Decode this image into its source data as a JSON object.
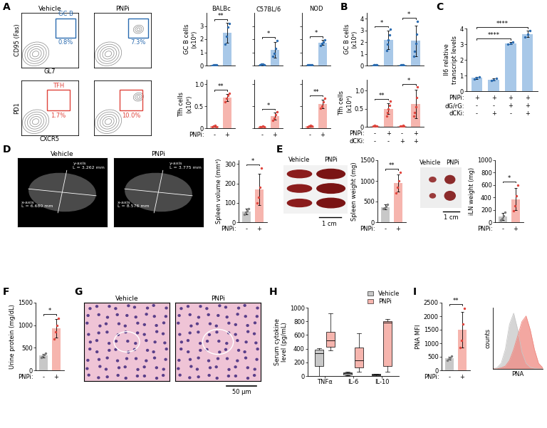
{
  "panel_labels": [
    "A",
    "B",
    "C",
    "D",
    "E",
    "F",
    "G",
    "H",
    "I"
  ],
  "flow_plots": [
    {
      "title": "Vehicle",
      "xlabel": "GL7",
      "ylabel": "CD95 (Fas)",
      "gate": "GC B",
      "percent": "0.8%",
      "color": "#2a6bb0"
    },
    {
      "title": "PNPi",
      "percent": "7.3%",
      "color": "#2a6bb0"
    },
    {
      "xlabel": "CXCR5",
      "ylabel": "PD1",
      "gate": "TFH",
      "percent": "1.7%",
      "color": "#e0453d"
    },
    {
      "percent": "10.0%",
      "color": "#e0453d"
    }
  ],
  "ultrasound": [
    {
      "title": "Vehicle",
      "x_text": "x-axis\nL = 6.680 mm",
      "y_text": "y-axis\nL = 3.262 mm"
    },
    {
      "title": "PNPi",
      "x_text": "x-axis\nL = 8.576 mm",
      "y_text": "y-axis\nL = 3.775 mm"
    }
  ],
  "spleen_photo": {
    "labels": [
      "Vehicle",
      "PNPi"
    ],
    "scale": "1 cm"
  },
  "ln_photo": {
    "labels": [
      "Vehicle",
      "PNPi"
    ],
    "scale": "1 cm"
  },
  "histology": {
    "labels": [
      "Vehicle",
      "PNPi"
    ],
    "scale": "50 μm"
  },
  "chart_data": [
    {
      "type": "bar",
      "title": "BALBc",
      "ylabel": "GC B cells\n(x10⁶)",
      "values": [
        0.05,
        2.5
      ],
      "errors": [
        0.03,
        0.75
      ],
      "points": [
        [
          0.02,
          0.05,
          0.07,
          0.06
        ],
        [
          1.6,
          2.2,
          2.9,
          3.2
        ]
      ],
      "colors": [
        "#a8c8e8",
        "#a8c8e8"
      ],
      "point_colors": [
        "#2a6bb0",
        "#2a6bb0"
      ],
      "ylim": [
        0,
        4
      ],
      "yticks": [
        0,
        1,
        2,
        3
      ],
      "significance": [
        {
          "from": 0,
          "to": 1,
          "label": "**"
        }
      ]
    },
    {
      "type": "bar",
      "title": "C57BL/6",
      "values": [
        0.08,
        1.2
      ],
      "errors": [
        0.05,
        0.6
      ],
      "points": [
        [
          0.05,
          0.1,
          0.12,
          0.05
        ],
        [
          0.7,
          0.9,
          1.3,
          1.9
        ]
      ],
      "colors": [
        "#a8c8e8",
        "#a8c8e8"
      ],
      "point_colors": [
        "#2a6bb0",
        "#2a6bb0"
      ],
      "ylim": [
        0,
        4
      ],
      "yticks": [
        0,
        1,
        2,
        3
      ],
      "tick_labels": false,
      "significance": [
        {
          "from": 0,
          "to": 1,
          "label": "*"
        }
      ]
    },
    {
      "type": "bar",
      "title": "NOD",
      "values": [
        0.05,
        1.75
      ],
      "errors": [
        0.03,
        0.2
      ],
      "points": [
        [
          0.04,
          0.05,
          0.06,
          0.05
        ],
        [
          1.5,
          1.7,
          1.8,
          1.95
        ]
      ],
      "colors": [
        "#a8c8e8",
        "#a8c8e8"
      ],
      "point_colors": [
        "#2a6bb0",
        "#2a6bb0"
      ],
      "ylim": [
        0,
        4
      ],
      "yticks": [
        0,
        1,
        2,
        3
      ],
      "tick_labels": false,
      "significance": [
        {
          "from": 0,
          "to": 1,
          "label": "*"
        }
      ]
    },
    {
      "type": "bar",
      "ylabel": "Tfh cells\n(x10⁶)",
      "values": [
        0.05,
        0.7
      ],
      "errors": [
        0.02,
        0.08
      ],
      "points": [
        [
          0.03,
          0.05,
          0.06,
          0.04
        ],
        [
          0.6,
          0.68,
          0.75,
          0.8
        ]
      ],
      "colors": [
        "#f6b5ae",
        "#f6b5ae"
      ],
      "point_colors": [
        "#e0453d",
        "#e0453d"
      ],
      "ylim": [
        0,
        1.1
      ],
      "yticks": [
        0,
        0.5,
        1.0
      ],
      "conditions": [
        {
          "label": "PNPi:",
          "signs": [
            "-",
            "+"
          ]
        }
      ],
      "significance": [
        {
          "from": 0,
          "to": 1,
          "label": "**"
        }
      ]
    },
    {
      "type": "bar",
      "values": [
        0.04,
        0.27
      ],
      "errors": [
        0.01,
        0.08
      ],
      "points": [
        [
          0.03,
          0.04,
          0.05,
          0.04
        ],
        [
          0.18,
          0.22,
          0.3,
          0.37
        ]
      ],
      "colors": [
        "#f6b5ae",
        "#f6b5ae"
      ],
      "point_colors": [
        "#e0453d",
        "#e0453d"
      ],
      "ylim": [
        0,
        1.1
      ],
      "yticks": [
        0,
        0.5,
        1.0
      ],
      "tick_labels": false,
      "conditions": [
        {
          "signs": [
            "-",
            "+"
          ]
        }
      ],
      "significance": [
        {
          "from": 0,
          "to": 1,
          "label": "*"
        }
      ]
    },
    {
      "type": "bar",
      "values": [
        0.05,
        0.55
      ],
      "errors": [
        0.02,
        0.1
      ],
      "points": [
        [
          0.04,
          0.05,
          0.06,
          0.05
        ],
        [
          0.45,
          0.5,
          0.6,
          0.68
        ]
      ],
      "colors": [
        "#f6b5ae",
        "#f6b5ae"
      ],
      "point_colors": [
        "#e0453d",
        "#e0453d"
      ],
      "ylim": [
        0,
        1.1
      ],
      "yticks": [
        0,
        0.5,
        1.0
      ],
      "tick_labels": false,
      "conditions": [
        {
          "signs": [
            "-",
            "+"
          ]
        }
      ],
      "significance": [
        {
          "from": 0,
          "to": 1,
          "label": "**"
        }
      ]
    },
    {
      "type": "bar",
      "ylabel": "GC B cells\n(x10⁶)",
      "values": [
        0.05,
        2.2,
        0.04,
        2.1
      ],
      "errors": [
        0.03,
        0.8,
        0.02,
        1.3
      ],
      "points": [
        [
          0.03,
          0.05,
          0.06,
          0.04,
          0.07
        ],
        [
          1.3,
          1.8,
          2.2,
          2.6,
          3.1
        ],
        [
          0.02,
          0.04,
          0.05,
          0.04,
          0.03
        ],
        [
          0.8,
          1.2,
          1.9,
          2.7,
          3.8
        ]
      ],
      "colors": [
        "#a8c8e8",
        "#a8c8e8",
        "#a8c8e8",
        "#a8c8e8"
      ],
      "point_colors": [
        "#2a6bb0",
        "#2a6bb0",
        "#2a6bb0",
        "#2a6bb0"
      ],
      "ylim": [
        0,
        4.5
      ],
      "yticks": [
        0,
        1,
        2,
        3,
        4
      ],
      "significance": [
        {
          "from": 0,
          "to": 1,
          "label": "*"
        },
        {
          "from": 2,
          "to": 3,
          "label": "*"
        }
      ]
    },
    {
      "type": "bar",
      "ylabel": "Tfh cells\n(x10⁶)",
      "values": [
        0.02,
        0.5,
        0.02,
        0.63
      ],
      "errors": [
        0.01,
        0.15,
        0.01,
        0.4
      ],
      "points": [
        [
          0.01,
          0.02,
          0.03,
          0.02,
          0.02
        ],
        [
          0.3,
          0.4,
          0.5,
          0.6,
          0.7
        ],
        [
          0.01,
          0.02,
          0.02,
          0.03,
          0.02
        ],
        [
          0.3,
          0.4,
          0.55,
          0.8,
          1.1
        ]
      ],
      "colors": [
        "#f6b5ae",
        "#f6b5ae",
        "#f6b5ae",
        "#f6b5ae"
      ],
      "point_colors": [
        "#e0453d",
        "#e0453d",
        "#e0453d",
        "#e0453d"
      ],
      "ylim": [
        0,
        1.3
      ],
      "yticks": [
        0,
        0.5,
        1.0
      ],
      "conditions": [
        {
          "label": "PNPi:",
          "signs": [
            "-",
            "+",
            "-",
            "+"
          ]
        },
        {
          "label": "dCKi:",
          "signs": [
            "-",
            "-",
            "+",
            "+"
          ]
        }
      ],
      "significance": [
        {
          "from": 0,
          "to": 1,
          "label": "**"
        },
        {
          "from": 2,
          "to": 3,
          "label": "*"
        }
      ]
    },
    {
      "type": "bar",
      "ylabel": "Il6 relative\ntranscript levels",
      "values": [
        0.85,
        0.75,
        3.05,
        3.65
      ],
      "errors": [
        0.08,
        0.08,
        0.07,
        0.2
      ],
      "points": [
        [
          0.78,
          0.85,
          0.92
        ],
        [
          0.68,
          0.75,
          0.82
        ],
        [
          2.98,
          3.05,
          3.12
        ],
        [
          3.45,
          3.65,
          3.85
        ]
      ],
      "colors": [
        "#a8c8e8",
        "#a8c8e8",
        "#a8c8e8",
        "#a8c8e8"
      ],
      "point_colors": [
        "#2a6bb0",
        "#2a6bb0",
        "#2a6bb0",
        "#2a6bb0"
      ],
      "ylim": [
        0,
        4
      ],
      "yticks": [
        0,
        1,
        2,
        3,
        4
      ],
      "conditions": [
        {
          "label": "PNPi:",
          "signs": [
            "+",
            "+",
            "+",
            "+"
          ]
        },
        {
          "label": "dG/rG:",
          "signs": [
            "-",
            "-",
            "+",
            "+"
          ]
        },
        {
          "label": "dCKi:",
          "signs": [
            "-",
            "+",
            "-",
            "+"
          ]
        }
      ],
      "significance": [
        {
          "from": 0,
          "to": 2,
          "label": "****"
        },
        {
          "from": 0,
          "to": 3,
          "label": "****"
        }
      ]
    },
    {
      "type": "bar",
      "ylabel": "Spleen volume (mm³)",
      "values": [
        55,
        170
      ],
      "errors": [
        15,
        80
      ],
      "points": [
        [
          40,
          50,
          60,
          70
        ],
        [
          100,
          130,
          180,
          280
        ]
      ],
      "colors": [
        "#c8c8c8",
        "#f6b5ae"
      ],
      "point_colors": [
        "#7a7a7a",
        "#e0453d"
      ],
      "ylim": [
        0,
        320
      ],
      "yticks": [
        0,
        100,
        200,
        300
      ],
      "conditions": [
        {
          "label": "PNPi:",
          "signs": [
            "-",
            "+"
          ]
        }
      ],
      "significance": [
        {
          "from": 0,
          "to": 1,
          "label": "*"
        }
      ]
    },
    {
      "type": "bar",
      "ylabel": "Spleen weight (mg)",
      "values": [
        370,
        950
      ],
      "errors": [
        60,
        200
      ],
      "points": [
        [
          320,
          350,
          380,
          430
        ],
        [
          700,
          850,
          1000,
          1200
        ]
      ],
      "colors": [
        "#c8c8c8",
        "#f6b5ae"
      ],
      "point_colors": [
        "#7a7a7a",
        "#e0453d"
      ],
      "ylim": [
        0,
        1500
      ],
      "yticks": [
        0,
        500,
        1000,
        1500
      ],
      "conditions": [
        {
          "label": "PNPi:",
          "signs": [
            "-",
            "+"
          ]
        }
      ],
      "significance": [
        {
          "from": 0,
          "to": 1,
          "label": "**"
        }
      ]
    },
    {
      "type": "bar",
      "ylabel": "iLN weight (mg)",
      "values": [
        90,
        370
      ],
      "errors": [
        60,
        180
      ],
      "points": [
        [
          30,
          60,
          100,
          160
        ],
        [
          180,
          260,
          420,
          600
        ]
      ],
      "colors": [
        "#c8c8c8",
        "#f6b5ae"
      ],
      "point_colors": [
        "#7a7a7a",
        "#e0453d"
      ],
      "ylim": [
        0,
        1000
      ],
      "yticks": [
        0,
        200,
        400,
        600,
        800,
        1000
      ],
      "conditions": [
        {
          "label": "PNPi:",
          "signs": [
            "-",
            "+"
          ]
        }
      ],
      "significance": [
        {
          "from": 0,
          "to": 1,
          "label": "*"
        }
      ]
    },
    {
      "type": "bar",
      "ylabel": "Urine protein (mg/dL)",
      "values": [
        330,
        930
      ],
      "errors": [
        40,
        200
      ],
      "points": [
        [
          280,
          310,
          350,
          380
        ],
        [
          700,
          850,
          1000,
          1150
        ]
      ],
      "colors": [
        "#c8c8c8",
        "#f6b5ae"
      ],
      "point_colors": [
        "#7a7a7a",
        "#e0453d"
      ],
      "ylim": [
        0,
        1500
      ],
      "yticks": [
        0,
        500,
        1000,
        1500
      ],
      "conditions": [
        {
          "label": "PNPi:",
          "signs": [
            "-",
            "+"
          ]
        }
      ],
      "significance": [
        {
          "from": 0,
          "to": 1,
          "label": "*"
        }
      ]
    },
    {
      "type": "box",
      "ylabel": "Serum cytokine\nlevel (pg/mL)",
      "categories": [
        "TNFα",
        "IL-6",
        "IL-10"
      ],
      "series": [
        {
          "name": "Vehicle",
          "color": "#c8c8c8",
          "boxes": [
            {
              "whislo": 5,
              "q1": 150,
              "med": 330,
              "q3": 390,
              "whishi": 410
            },
            {
              "whislo": 10,
              "q1": 25,
              "med": 40,
              "q3": 55,
              "whishi": 60
            },
            {
              "whislo": 5,
              "q1": 10,
              "med": 20,
              "q3": 30,
              "whishi": 35
            }
          ]
        },
        {
          "name": "PNPi",
          "color": "#f6b5ae",
          "boxes": [
            {
              "whislo": 380,
              "q1": 430,
              "med": 520,
              "q3": 650,
              "whishi": 920
            },
            {
              "whislo": 60,
              "q1": 120,
              "med": 230,
              "q3": 420,
              "whishi": 620
            },
            {
              "whislo": 60,
              "q1": 150,
              "med": 780,
              "q3": 800,
              "whishi": 830
            }
          ]
        }
      ],
      "ylim": [
        0,
        1000
      ],
      "yticks": [
        0,
        200,
        400,
        600,
        800,
        1000
      ],
      "legend": "upper right"
    },
    {
      "type": "bar",
      "ylabel": "PNA MFI",
      "values": [
        450,
        1500
      ],
      "errors": [
        60,
        650
      ],
      "points": [
        [
          380,
          420,
          470,
          520
        ],
        [
          850,
          1100,
          1700,
          2300
        ]
      ],
      "colors": [
        "#c8c8c8",
        "#f6b5ae"
      ],
      "point_colors": [
        "#7a7a7a",
        "#e0453d"
      ],
      "ylim": [
        0,
        2500
      ],
      "yticks": [
        0,
        500,
        1000,
        1500,
        2000,
        2500
      ],
      "conditions": [
        {
          "label": "PNPi:",
          "signs": [
            "-",
            "+"
          ]
        }
      ],
      "significance": [
        {
          "from": 0,
          "to": 1,
          "label": "**"
        }
      ]
    },
    {
      "type": "area",
      "xlabel": "PNA",
      "ylabel": "counts",
      "x": [
        0,
        1,
        2,
        3,
        4,
        5,
        6,
        7,
        8,
        9,
        10,
        11,
        12
      ],
      "series": [
        {
          "name": "Vehicle",
          "color": "#c8c8c8",
          "values": [
            0,
            0.02,
            0.1,
            0.35,
            0.8,
            1.0,
            0.7,
            0.3,
            0.1,
            0.03,
            0.01,
            0,
            0
          ]
        },
        {
          "name": "PNPi",
          "color": "#f08a82",
          "values": [
            0,
            0,
            0.02,
            0.05,
            0.15,
            0.35,
            0.6,
            0.85,
            0.95,
            0.7,
            0.35,
            0.1,
            0.02
          ]
        }
      ],
      "xlim": [
        0,
        12
      ],
      "ylim": [
        0,
        1.1
      ],
      "tick_labels": false
    }
  ]
}
